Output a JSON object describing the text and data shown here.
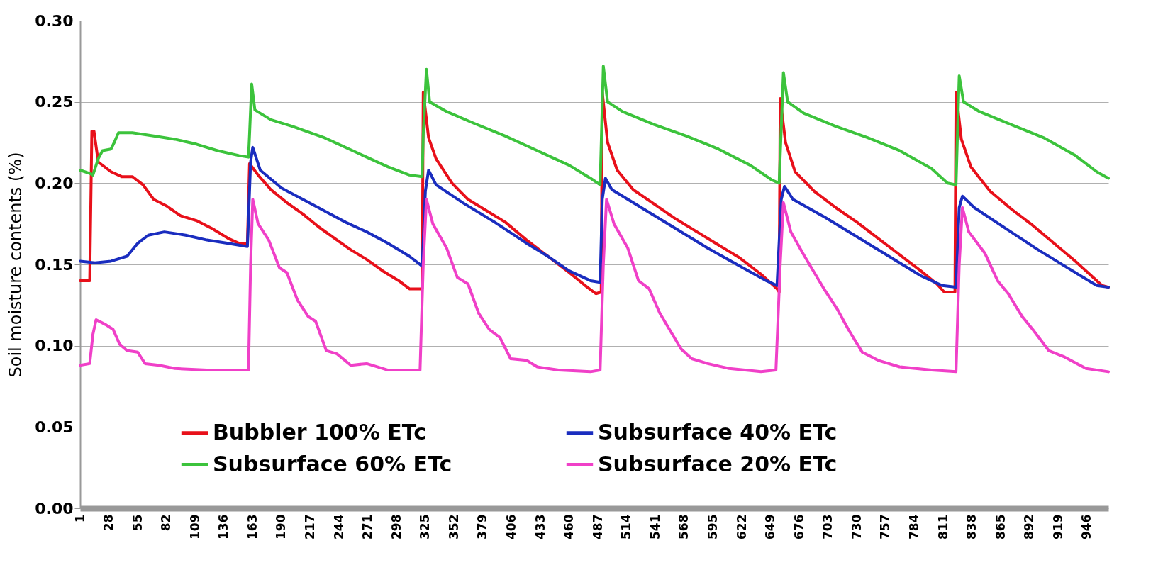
{
  "chart_data": {
    "type": "line",
    "ylabel": "Soil moisture contents (%)",
    "xlim": [
      1,
      966
    ],
    "xticks": [
      1,
      28,
      55,
      82,
      109,
      136,
      163,
      190,
      217,
      244,
      271,
      298,
      325,
      352,
      379,
      406,
      433,
      460,
      487,
      514,
      541,
      568,
      595,
      622,
      649,
      676,
      703,
      730,
      757,
      784,
      811,
      838,
      865,
      892,
      919,
      946
    ],
    "ylim": [
      0,
      0.3
    ],
    "yticks": [
      {
        "value": 0,
        "label": "0.00"
      },
      {
        "value": 0.05,
        "label": "0.05"
      },
      {
        "value": 0.1,
        "label": "0.10"
      },
      {
        "value": 0.15,
        "label": "0.15"
      },
      {
        "value": 0.2,
        "label": "0.20"
      },
      {
        "value": 0.25,
        "label": "0.25"
      },
      {
        "value": 0.3,
        "label": "0.30"
      }
    ],
    "grid": "y",
    "legend": "bottom",
    "series": [
      {
        "name": "Bubbler 100% ETc",
        "color": "#e8101a",
        "x": [
          1,
          10,
          12,
          14,
          18,
          30,
          40,
          50,
          60,
          70,
          82,
          95,
          110,
          125,
          140,
          150,
          158,
          160,
          168,
          180,
          195,
          210,
          225,
          240,
          255,
          270,
          285,
          300,
          310,
          322,
          323,
          328,
          335,
          350,
          365,
          380,
          400,
          420,
          440,
          460,
          475,
          485,
          490,
          491,
          496,
          505,
          520,
          540,
          560,
          580,
          600,
          620,
          640,
          655,
          657,
          658,
          663,
          672,
          690,
          710,
          730,
          750,
          770,
          790,
          805,
          812,
          822,
          823,
          828,
          837,
          855,
          875,
          895,
          915,
          935,
          950,
          960,
          966
        ],
        "values": [
          0.14,
          0.14,
          0.232,
          0.232,
          0.213,
          0.207,
          0.204,
          0.204,
          0.199,
          0.19,
          0.186,
          0.18,
          0.177,
          0.172,
          0.166,
          0.163,
          0.163,
          0.212,
          0.205,
          0.196,
          0.188,
          0.181,
          0.173,
          0.166,
          0.159,
          0.153,
          0.146,
          0.14,
          0.135,
          0.135,
          0.256,
          0.228,
          0.215,
          0.2,
          0.19,
          0.184,
          0.176,
          0.165,
          0.155,
          0.145,
          0.137,
          0.132,
          0.133,
          0.256,
          0.225,
          0.208,
          0.196,
          0.187,
          0.178,
          0.17,
          0.162,
          0.154,
          0.144,
          0.135,
          0.133,
          0.252,
          0.225,
          0.207,
          0.195,
          0.185,
          0.176,
          0.166,
          0.156,
          0.146,
          0.138,
          0.133,
          0.133,
          0.256,
          0.227,
          0.21,
          0.195,
          0.184,
          0.174,
          0.163,
          0.152,
          0.143,
          0.137,
          0.136
        ]
      },
      {
        "name": "Subsurface 60% ETc",
        "color": "#3cc33c",
        "x": [
          1,
          10,
          13,
          18,
          22,
          30,
          33,
          37,
          50,
          70,
          90,
          110,
          130,
          150,
          159,
          160,
          162,
          165,
          180,
          200,
          230,
          260,
          290,
          310,
          322,
          323,
          326,
          329,
          345,
          370,
          400,
          430,
          460,
          480,
          489,
          492,
          496,
          510,
          540,
          570,
          600,
          630,
          650,
          657,
          661,
          665,
          680,
          710,
          740,
          770,
          800,
          815,
          823,
          826,
          830,
          845,
          875,
          905,
          935,
          955,
          966
        ],
        "values": [
          0.208,
          0.206,
          0.205,
          0.215,
          0.22,
          0.221,
          0.225,
          0.231,
          0.231,
          0.229,
          0.227,
          0.224,
          0.22,
          0.217,
          0.216,
          0.23,
          0.261,
          0.245,
          0.239,
          0.235,
          0.228,
          0.219,
          0.21,
          0.205,
          0.204,
          0.23,
          0.27,
          0.25,
          0.244,
          0.237,
          0.229,
          0.22,
          0.211,
          0.203,
          0.199,
          0.272,
          0.25,
          0.244,
          0.236,
          0.229,
          0.221,
          0.211,
          0.202,
          0.2,
          0.268,
          0.25,
          0.243,
          0.235,
          0.228,
          0.22,
          0.209,
          0.2,
          0.199,
          0.266,
          0.25,
          0.244,
          0.236,
          0.228,
          0.217,
          0.207,
          0.203
        ]
      },
      {
        "name": "Subsurface 40% ETc",
        "color": "#1a2dbf",
        "x": [
          1,
          15,
          30,
          45,
          55,
          65,
          80,
          100,
          120,
          140,
          158,
          161,
          163,
          170,
          190,
          210,
          230,
          250,
          270,
          290,
          310,
          322,
          325,
          328,
          335,
          360,
          390,
          420,
          440,
          460,
          480,
          489,
          491,
          494,
          500,
          530,
          560,
          590,
          620,
          645,
          655,
          659,
          662,
          670,
          700,
          730,
          760,
          790,
          810,
          823,
          826,
          829,
          840,
          870,
          900,
          930,
          955,
          966
        ],
        "values": [
          0.152,
          0.151,
          0.152,
          0.155,
          0.163,
          0.168,
          0.17,
          0.168,
          0.165,
          0.163,
          0.161,
          0.213,
          0.222,
          0.208,
          0.197,
          0.19,
          0.183,
          0.176,
          0.17,
          0.163,
          0.155,
          0.149,
          0.195,
          0.208,
          0.199,
          0.188,
          0.176,
          0.163,
          0.155,
          0.146,
          0.14,
          0.139,
          0.19,
          0.203,
          0.196,
          0.184,
          0.172,
          0.16,
          0.149,
          0.14,
          0.137,
          0.19,
          0.198,
          0.19,
          0.179,
          0.167,
          0.155,
          0.143,
          0.137,
          0.136,
          0.185,
          0.192,
          0.185,
          0.172,
          0.159,
          0.147,
          0.137,
          0.136
        ]
      },
      {
        "name": "Subsurface 20% ETc",
        "color": "#f040c8",
        "x": [
          1,
          10,
          13,
          16,
          25,
          32,
          38,
          45,
          55,
          62,
          75,
          90,
          120,
          150,
          159,
          161,
          163,
          168,
          178,
          188,
          195,
          205,
          215,
          222,
          232,
          242,
          255,
          270,
          290,
          320,
          323,
          326,
          332,
          345,
          355,
          365,
          375,
          385,
          395,
          405,
          420,
          430,
          450,
          480,
          489,
          492,
          495,
          502,
          515,
          525,
          535,
          545,
          555,
          565,
          575,
          590,
          610,
          640,
          654,
          658,
          661,
          668,
          680,
          690,
          700,
          712,
          722,
          735,
          750,
          770,
          800,
          823,
          826,
          829,
          835,
          850,
          862,
          872,
          885,
          895,
          910,
          925,
          945,
          966
        ],
        "values": [
          0.088,
          0.089,
          0.107,
          0.116,
          0.113,
          0.11,
          0.101,
          0.097,
          0.096,
          0.089,
          0.088,
          0.086,
          0.085,
          0.085,
          0.085,
          0.15,
          0.19,
          0.175,
          0.165,
          0.148,
          0.145,
          0.128,
          0.118,
          0.115,
          0.097,
          0.095,
          0.088,
          0.089,
          0.085,
          0.085,
          0.15,
          0.19,
          0.175,
          0.16,
          0.142,
          0.138,
          0.12,
          0.11,
          0.105,
          0.092,
          0.091,
          0.087,
          0.085,
          0.084,
          0.085,
          0.15,
          0.19,
          0.175,
          0.16,
          0.14,
          0.135,
          0.12,
          0.109,
          0.098,
          0.092,
          0.089,
          0.086,
          0.084,
          0.085,
          0.15,
          0.188,
          0.17,
          0.156,
          0.145,
          0.134,
          0.122,
          0.11,
          0.096,
          0.091,
          0.087,
          0.085,
          0.084,
          0.15,
          0.185,
          0.17,
          0.157,
          0.14,
          0.132,
          0.118,
          0.11,
          0.097,
          0.093,
          0.086,
          0.084
        ]
      }
    ]
  }
}
